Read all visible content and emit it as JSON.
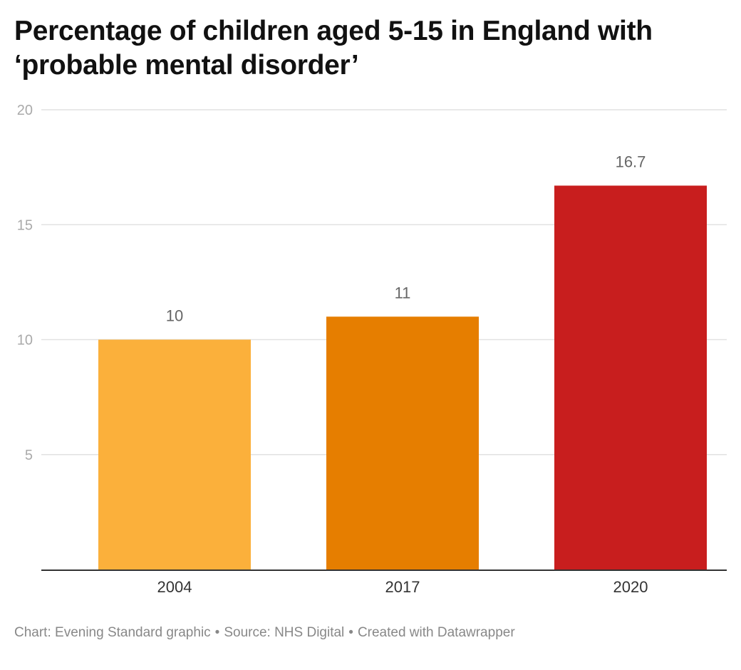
{
  "chart_data": {
    "type": "bar",
    "title": "Percentage of children aged 5-15 in England with ‘probable mental disorder’",
    "categories": [
      "2004",
      "2017",
      "2020"
    ],
    "values": [
      10,
      11,
      16.7
    ],
    "value_labels": [
      "10",
      "11",
      "16.7"
    ],
    "colors": [
      "#fbb03b",
      "#e67e00",
      "#c81e1e"
    ],
    "ylim": [
      0,
      20
    ],
    "yticks": [
      5,
      10,
      15,
      20
    ],
    "ytick_labels": [
      "5",
      "10",
      "15",
      "20"
    ],
    "xlabel": "",
    "ylabel": "",
    "grid": true,
    "legend": "none"
  },
  "footer": {
    "chart_credit": "Chart: Evening Standard graphic",
    "source": "Source: NHS Digital",
    "created_with": "Created with Datawrapper",
    "separator": "•"
  },
  "colors": {
    "gridline": "#e2e2e2",
    "baseline": "#333333",
    "tick_label": "#aaaaaa",
    "value_label": "#666666",
    "category_label": "#333333"
  }
}
